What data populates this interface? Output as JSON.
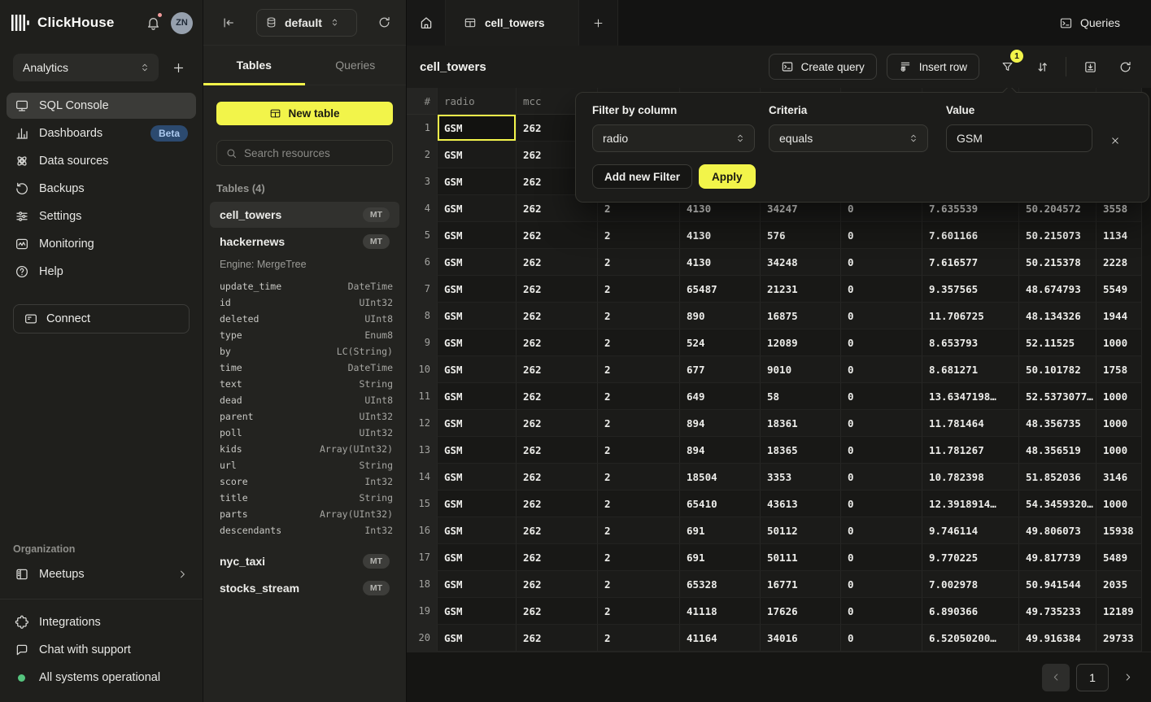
{
  "colors": {
    "accent": "#F2F44A",
    "green": "#55C47E",
    "red": "#F09A9A"
  },
  "brand": {
    "name": "ClickHouse",
    "avatar_initials": "ZN"
  },
  "workspace": {
    "name": "Analytics"
  },
  "sidebar": {
    "items": [
      {
        "label": "SQL Console",
        "icon": "console",
        "active": true
      },
      {
        "label": "Dashboards",
        "icon": "dashboards",
        "badge": "Beta"
      },
      {
        "label": "Data sources",
        "icon": "data-sources"
      },
      {
        "label": "Backups",
        "icon": "backups"
      },
      {
        "label": "Settings",
        "icon": "settings"
      },
      {
        "label": "Monitoring",
        "icon": "monitoring"
      },
      {
        "label": "Help",
        "icon": "help"
      }
    ],
    "connect_label": "Connect",
    "organization_label": "Organization",
    "meetups_label": "Meetups",
    "footer_items": [
      {
        "label": "Integrations",
        "icon": "puzzle"
      },
      {
        "label": "Chat with support",
        "icon": "chat"
      },
      {
        "label": "All systems operational",
        "icon": "status-dot"
      }
    ]
  },
  "explorer": {
    "database": "default",
    "tabs": [
      {
        "label": "Tables"
      },
      {
        "label": "Queries"
      }
    ],
    "new_table_label": "New table",
    "search_placeholder": "Search resources",
    "group_label": "Tables (4)",
    "tables": [
      {
        "name": "cell_towers",
        "badge": "MT",
        "selected": true
      },
      {
        "name": "hackernews",
        "badge": "MT",
        "engine": "Engine: MergeTree",
        "fields": [
          {
            "name": "update_time",
            "type": "DateTime"
          },
          {
            "name": "id",
            "type": "UInt32"
          },
          {
            "name": "deleted",
            "type": "UInt8"
          },
          {
            "name": "type",
            "type": "Enum8"
          },
          {
            "name": "by",
            "type": "LC(String)"
          },
          {
            "name": "time",
            "type": "DateTime"
          },
          {
            "name": "text",
            "type": "String"
          },
          {
            "name": "dead",
            "type": "UInt8"
          },
          {
            "name": "parent",
            "type": "UInt32"
          },
          {
            "name": "poll",
            "type": "UInt32"
          },
          {
            "name": "kids",
            "type": "Array(UInt32)"
          },
          {
            "name": "url",
            "type": "String"
          },
          {
            "name": "score",
            "type": "Int32"
          },
          {
            "name": "title",
            "type": "String"
          },
          {
            "name": "parts",
            "type": "Array(UInt32)"
          },
          {
            "name": "descendants",
            "type": "Int32"
          }
        ]
      },
      {
        "name": "nyc_taxi",
        "badge": "MT"
      },
      {
        "name": "stocks_stream",
        "badge": "MT"
      }
    ]
  },
  "main": {
    "active_tab": "cell_towers",
    "queries_button": "Queries",
    "title": "cell_towers",
    "create_query_label": "Create query",
    "insert_row_label": "Insert row",
    "filter_badge": "1",
    "pagination_page": "1"
  },
  "filter_popup": {
    "column_label": "Filter by column",
    "column_value": "radio",
    "criteria_label": "Criteria",
    "criteria_value": "equals",
    "value_label": "Value",
    "value": "GSM",
    "add_button": "Add new Filter",
    "apply_button": "Apply"
  },
  "table": {
    "headers": [
      "#",
      "radio",
      "mcc",
      "",
      "",
      "",
      "",
      "",
      "",
      ""
    ],
    "rows": [
      [
        "1",
        "GSM",
        "262",
        "",
        "",
        "",
        "",
        "",
        "",
        ""
      ],
      [
        "2",
        "GSM",
        "262",
        "",
        "",
        "",
        "",
        "",
        "",
        ""
      ],
      [
        "3",
        "GSM",
        "262",
        "",
        "",
        "",
        "",
        "",
        "",
        ""
      ],
      [
        "4",
        "GSM",
        "262",
        "2",
        "4130",
        "34247",
        "0",
        "7.635539",
        "50.204572",
        "3558"
      ],
      [
        "5",
        "GSM",
        "262",
        "2",
        "4130",
        "576",
        "0",
        "7.601166",
        "50.215073",
        "1134"
      ],
      [
        "6",
        "GSM",
        "262",
        "2",
        "4130",
        "34248",
        "0",
        "7.616577",
        "50.215378",
        "2228"
      ],
      [
        "7",
        "GSM",
        "262",
        "2",
        "65487",
        "21231",
        "0",
        "9.357565",
        "48.674793",
        "5549"
      ],
      [
        "8",
        "GSM",
        "262",
        "2",
        "890",
        "16875",
        "0",
        "11.706725",
        "48.134326",
        "1944"
      ],
      [
        "9",
        "GSM",
        "262",
        "2",
        "524",
        "12089",
        "0",
        "8.653793",
        "52.11525",
        "1000"
      ],
      [
        "10",
        "GSM",
        "262",
        "2",
        "677",
        "9010",
        "0",
        "8.681271",
        "50.101782",
        "1758"
      ],
      [
        "11",
        "GSM",
        "262",
        "2",
        "649",
        "58",
        "0",
        "13.6347198…",
        "52.5373077…",
        "1000"
      ],
      [
        "12",
        "GSM",
        "262",
        "2",
        "894",
        "18361",
        "0",
        "11.781464",
        "48.356735",
        "1000"
      ],
      [
        "13",
        "GSM",
        "262",
        "2",
        "894",
        "18365",
        "0",
        "11.781267",
        "48.356519",
        "1000"
      ],
      [
        "14",
        "GSM",
        "262",
        "2",
        "18504",
        "3353",
        "0",
        "10.782398",
        "51.852036",
        "3146"
      ],
      [
        "15",
        "GSM",
        "262",
        "2",
        "65410",
        "43613",
        "0",
        "12.3918914…",
        "54.3459320…",
        "1000"
      ],
      [
        "16",
        "GSM",
        "262",
        "2",
        "691",
        "50112",
        "0",
        "9.746114",
        "49.806073",
        "15938"
      ],
      [
        "17",
        "GSM",
        "262",
        "2",
        "691",
        "50111",
        "0",
        "9.770225",
        "49.817739",
        "5489"
      ],
      [
        "18",
        "GSM",
        "262",
        "2",
        "65328",
        "16771",
        "0",
        "7.002978",
        "50.941544",
        "2035"
      ],
      [
        "19",
        "GSM",
        "262",
        "2",
        "41118",
        "17626",
        "0",
        "6.890366",
        "49.735233",
        "12189"
      ],
      [
        "20",
        "GSM",
        "262",
        "2",
        "41164",
        "34016",
        "0",
        "6.52050200…",
        "49.916384",
        "29733"
      ]
    ]
  }
}
